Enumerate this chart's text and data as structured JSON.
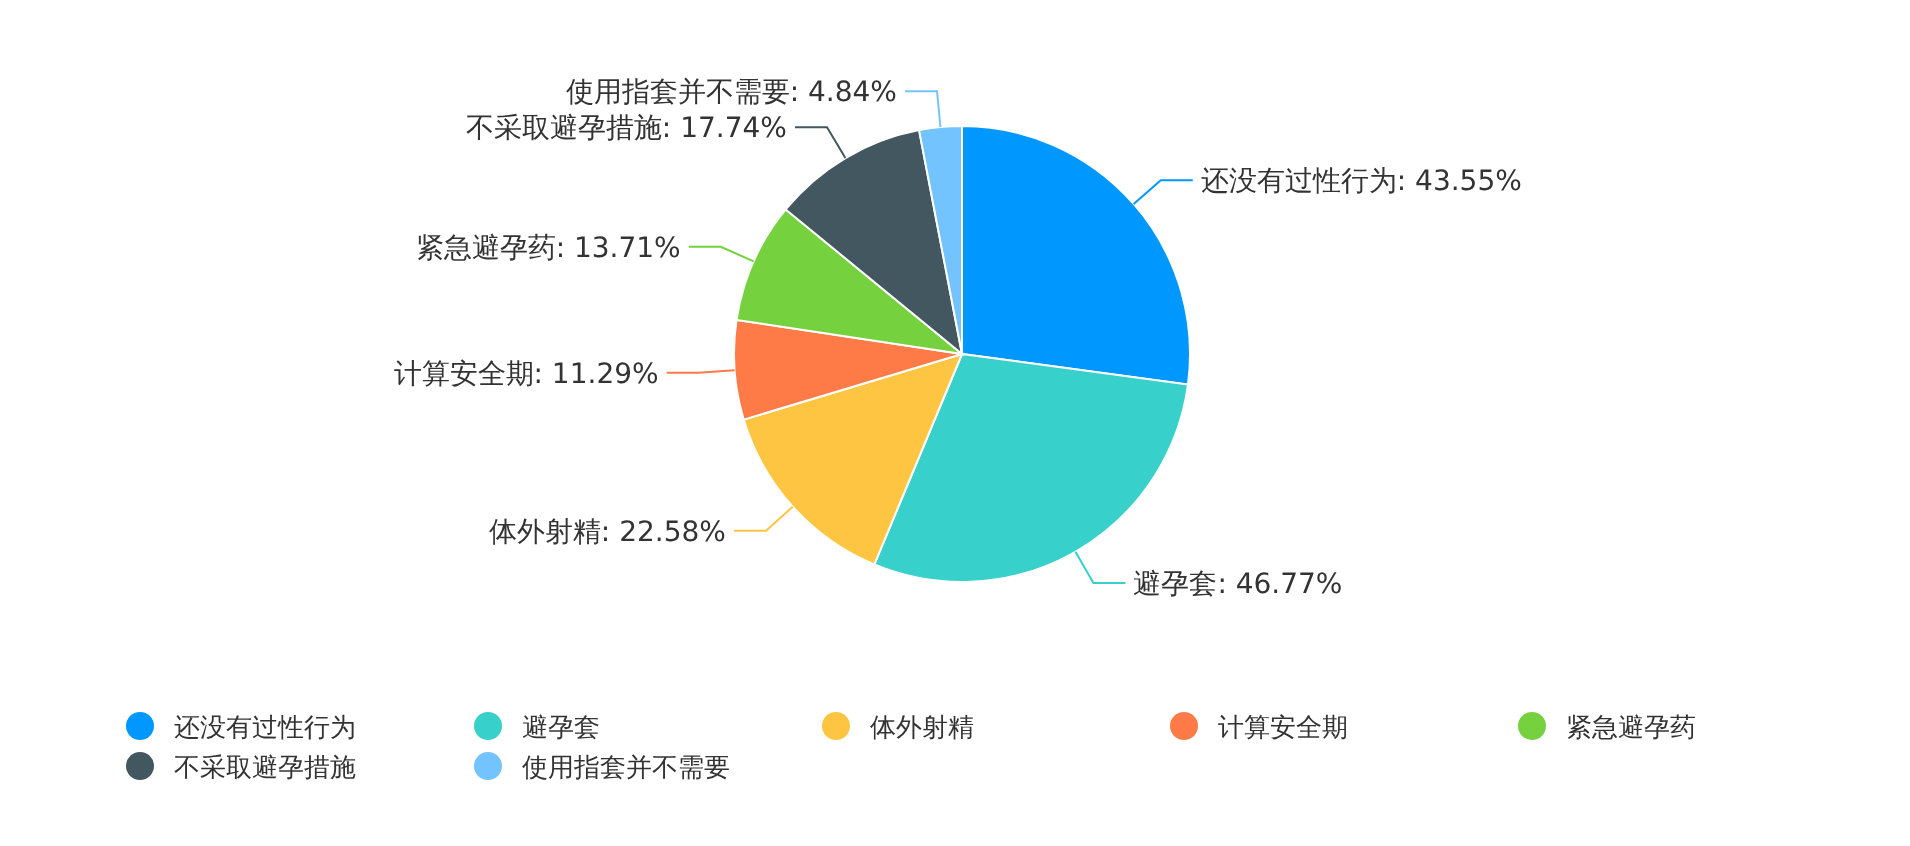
{
  "chart_data": {
    "type": "pie",
    "categories": [
      "还没有过性行为",
      "避孕套",
      "体外射精",
      "计算安全期",
      "紧急避孕药",
      "不采取避孕措施",
      "使用指套并不需要"
    ],
    "values": [
      43.55,
      46.77,
      22.58,
      11.29,
      13.71,
      17.74,
      4.84
    ],
    "colors": [
      "#0098fe",
      "#37d0cb",
      "#fec542",
      "#fe7b47",
      "#75d13d",
      "#435761",
      "#73c3fe"
    ],
    "value_labels": [
      "还没有过性行为: 43.55%",
      "避孕套: 46.77%",
      "体外射精: 22.58%",
      "计算安全期: 11.29%",
      "紧急避孕药: 13.71%",
      "不采取避孕措施: 17.74%",
      "使用指套并不需要: 4.84%"
    ],
    "legend": "bottom"
  }
}
